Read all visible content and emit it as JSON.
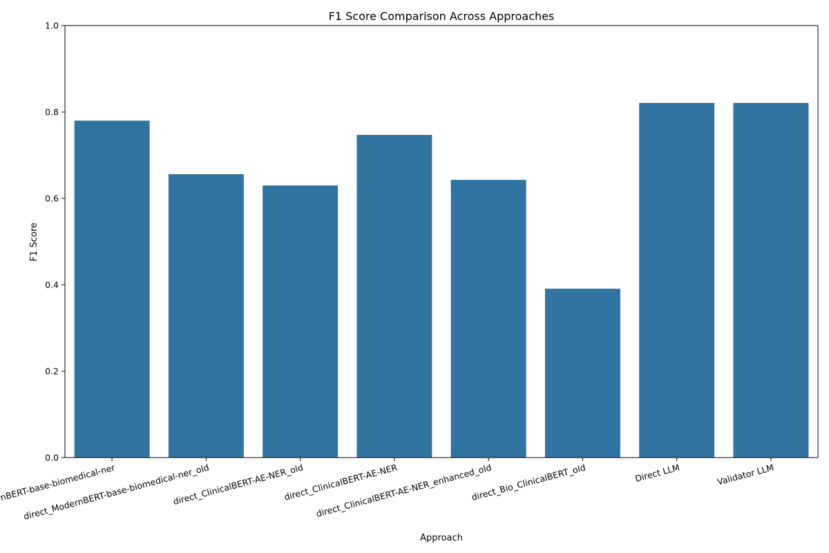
{
  "chart_data": {
    "type": "bar",
    "title": "F1 Score Comparison Across Approaches",
    "xlabel": "Approach",
    "ylabel": "F1 Score",
    "categories": [
      "direct_ModernBERT-base-biomedical-ner",
      "direct_ModernBERT-base-biomedical-ner_old",
      "direct_ClinicalBERT-AE-NER_old",
      "direct_ClinicalBERT-AE-NER",
      "direct_ClinicalBERT-AE-NER_enhanced_old",
      "direct_Bio_ClinicalBERT_old",
      "Direct LLM",
      "Validator LLM"
    ],
    "values": [
      0.78,
      0.656,
      0.63,
      0.747,
      0.643,
      0.391,
      0.821,
      0.821
    ],
    "ylim": [
      0,
      1.0
    ],
    "yticks": [
      0.0,
      0.2,
      0.4,
      0.6,
      0.8,
      1.0
    ],
    "ytick_labels": [
      "0.0",
      "0.2",
      "0.4",
      "0.6",
      "0.8",
      "1.0"
    ],
    "bar_color": "#3274a1",
    "grid": false,
    "legend": "none"
  }
}
